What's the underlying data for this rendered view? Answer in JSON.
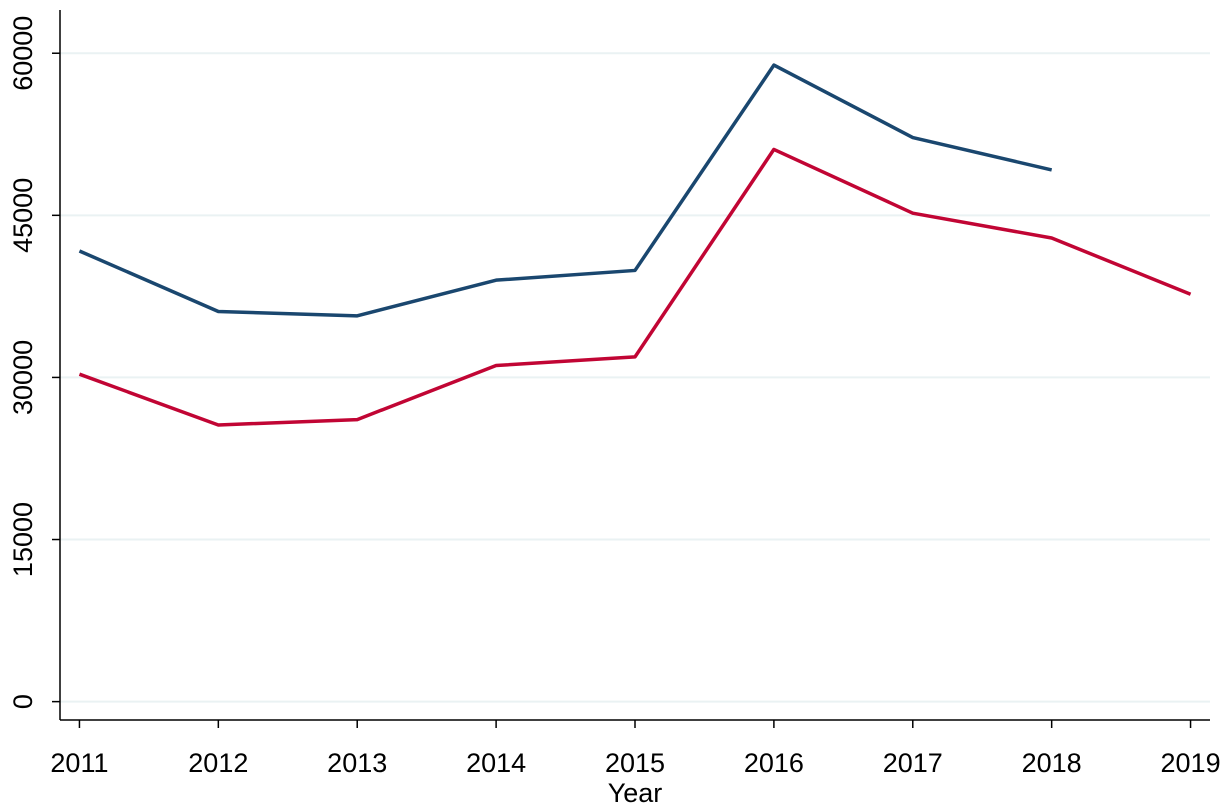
{
  "chart_data": {
    "type": "line",
    "x_label": "Year",
    "x": [
      2011,
      2012,
      2013,
      2014,
      2015,
      2016,
      2017,
      2018,
      2019
    ],
    "series": [
      {
        "color": "#1a476f",
        "values": [
          41700,
          36100,
          35700,
          39000,
          39900,
          58900,
          52200,
          49200,
          null
        ]
      },
      {
        "color": "#c10534",
        "values": [
          30300,
          25600,
          26100,
          31100,
          31900,
          51100,
          45200,
          42900,
          37700
        ]
      }
    ],
    "xlim": [
      2010.86,
      2019.14
    ],
    "xticks": [
      2011,
      2012,
      2013,
      2014,
      2015,
      2016,
      2017,
      2018,
      2019
    ],
    "ylim": [
      -1700,
      64000
    ],
    "yticks": [
      0,
      15000,
      30000,
      45000,
      60000
    ],
    "grid": true
  }
}
